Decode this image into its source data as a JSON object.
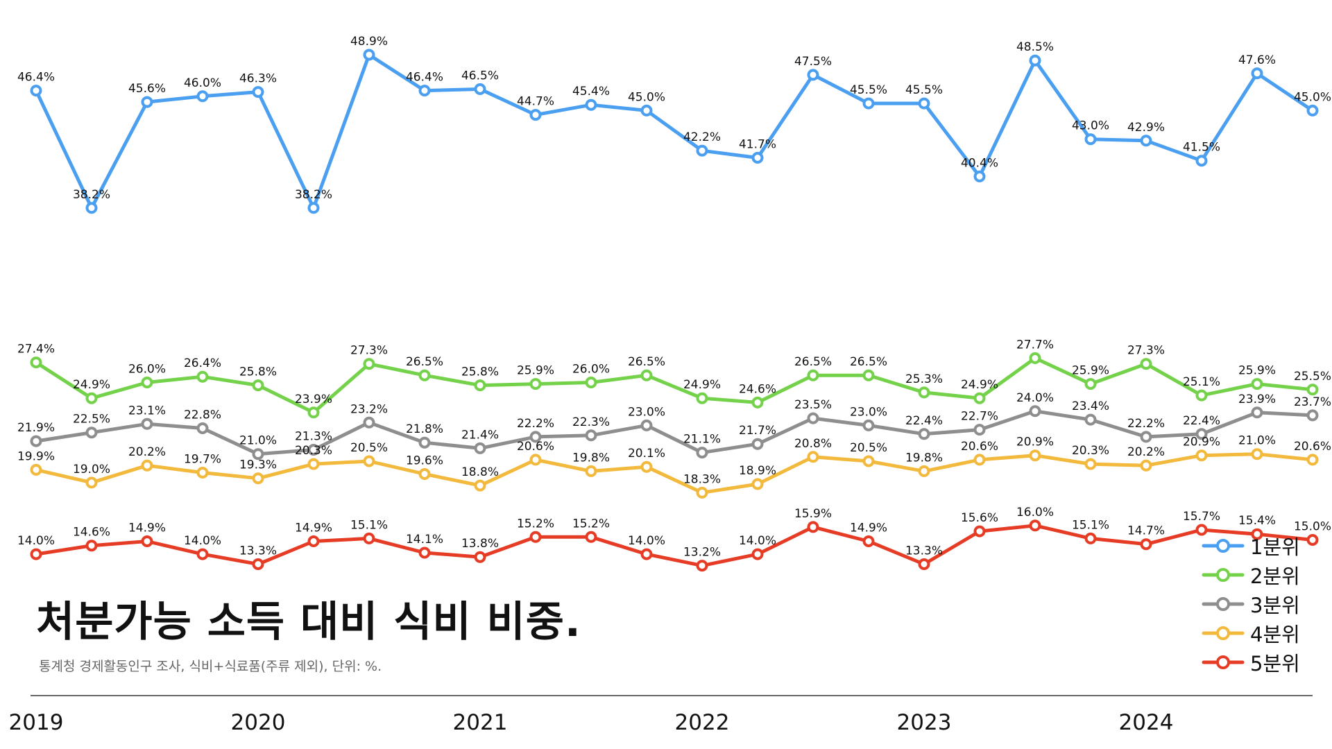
{
  "chart_data": {
    "type": "line",
    "title": "처분가능 소득 대비 식비 비중.",
    "subtitle": "통계청 경제활동인구 조사, 식비+식료품(주류 제외), 단위: %.",
    "x_tick_labels": [
      "2019",
      "2020",
      "2021",
      "2022",
      "2023",
      "2024"
    ],
    "points_per_year": 4,
    "ylim": [
      11,
      52
    ],
    "grid": false,
    "legend_position": "bottom-right",
    "series": [
      {
        "name": "1분위",
        "color": "#4a9ff0",
        "values": [
          46.4,
          38.2,
          45.6,
          46.0,
          46.3,
          38.2,
          48.9,
          46.4,
          46.5,
          44.7,
          45.4,
          45.0,
          42.2,
          41.7,
          47.5,
          45.5,
          45.5,
          40.4,
          48.5,
          43.0,
          42.9,
          41.5,
          47.6,
          45.0
        ]
      },
      {
        "name": "2분위",
        "color": "#74d24a",
        "values": [
          27.4,
          24.9,
          26.0,
          26.4,
          25.8,
          23.9,
          27.3,
          26.5,
          25.8,
          25.9,
          26.0,
          26.5,
          24.9,
          24.6,
          26.5,
          26.5,
          25.3,
          24.9,
          27.7,
          25.9,
          27.3,
          25.1,
          25.9,
          25.5
        ]
      },
      {
        "name": "3분위",
        "color": "#8e8e8e",
        "values": [
          21.9,
          22.5,
          23.1,
          22.8,
          21.0,
          21.3,
          23.2,
          21.8,
          21.4,
          22.2,
          22.3,
          23.0,
          21.1,
          21.7,
          23.5,
          23.0,
          22.4,
          22.7,
          24.0,
          23.4,
          22.2,
          22.4,
          23.9,
          23.7
        ]
      },
      {
        "name": "4분위",
        "color": "#f2b93d",
        "values": [
          19.9,
          19.0,
          20.2,
          19.7,
          19.3,
          20.3,
          20.5,
          19.6,
          18.8,
          20.6,
          19.8,
          20.1,
          18.3,
          18.9,
          20.8,
          20.5,
          19.8,
          20.6,
          20.9,
          20.3,
          20.2,
          20.9,
          21.0,
          20.6
        ]
      },
      {
        "name": "5분위",
        "color": "#e63c25",
        "values": [
          14.0,
          14.6,
          14.9,
          14.0,
          13.3,
          14.9,
          15.1,
          14.1,
          13.8,
          15.2,
          15.2,
          14.0,
          13.2,
          14.0,
          15.9,
          14.9,
          13.3,
          15.6,
          16.0,
          15.1,
          14.7,
          15.7,
          15.4,
          15.0
        ]
      }
    ]
  }
}
